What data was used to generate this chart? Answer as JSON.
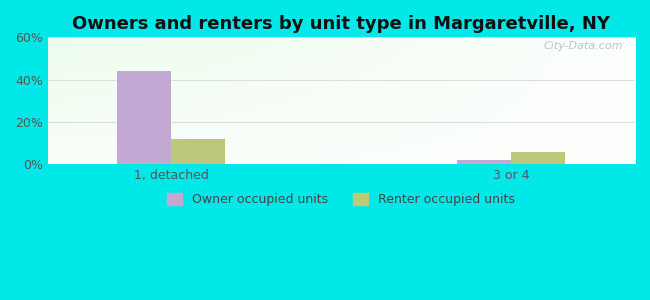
{
  "title": "Owners and renters by unit type in Margaretville, NY",
  "categories": [
    "1, detached",
    "3 or 4"
  ],
  "owner_values": [
    44,
    2
  ],
  "renter_values": [
    12,
    6
  ],
  "owner_color": "#c4a8d4",
  "renter_color": "#bec87a",
  "ylim": [
    0,
    60
  ],
  "yticks": [
    0,
    20,
    40,
    60
  ],
  "ytick_labels": [
    "0%",
    "20%",
    "40%",
    "60%"
  ],
  "background_color": "#00e8e8",
  "bar_width": 0.35,
  "group_positions": [
    1.0,
    3.2
  ],
  "legend_labels": [
    "Owner occupied units",
    "Renter occupied units"
  ],
  "watermark": "City-Data.com",
  "title_fontsize": 13
}
